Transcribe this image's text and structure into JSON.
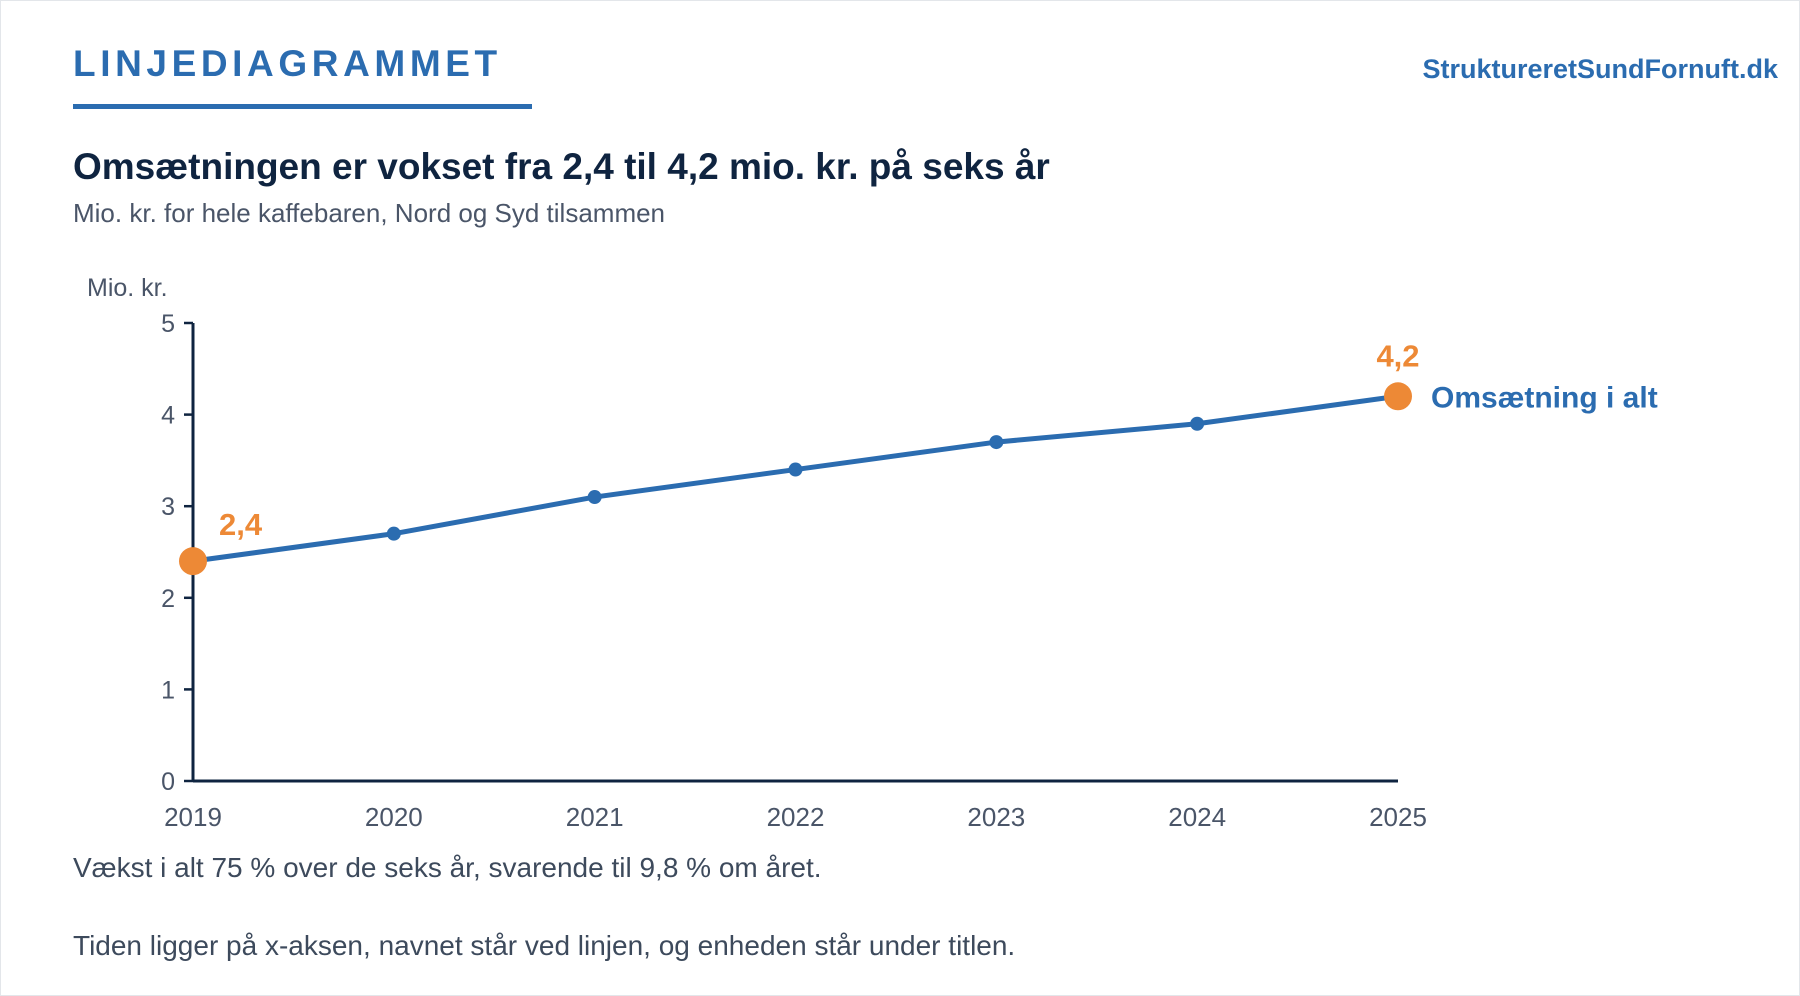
{
  "header": {
    "kicker": "LINJEDIAGRAMMET",
    "brand": "StruktureretSundFornuft.dk"
  },
  "colors": {
    "accent": "#2b6cb0",
    "highlight": "#ed8936",
    "title": "#0f2440",
    "text": "#4a5568",
    "axis": "#0f2440"
  },
  "chart_data": {
    "type": "line",
    "title": "Omsætningen er vokset fra 2,4 til 4,2 mio. kr. på seks år",
    "subtitle": "Mio. kr. for hele kaffebaren, Nord og Syd tilsammen",
    "xlabel": "",
    "ylabel": "Mio. kr.",
    "x": [
      "2019",
      "2020",
      "2021",
      "2022",
      "2023",
      "2024",
      "2025"
    ],
    "ylim": [
      0,
      5
    ],
    "yticks": [
      0,
      1,
      2,
      3,
      4,
      5
    ],
    "grid": false,
    "legend": "none",
    "series": [
      {
        "name": "Omsætning i alt",
        "values": [
          2.4,
          2.7,
          3.1,
          3.4,
          3.7,
          3.9,
          4.2
        ],
        "color": "#2b6cb0"
      }
    ],
    "annotations": [
      {
        "index": 0,
        "text": "2,4"
      },
      {
        "index": 6,
        "text": "4,2"
      }
    ]
  },
  "notes": {
    "growth": "Vækst i alt 75 % over de seks år, svarende til 9,8 % om året.",
    "reading_guide": "Tiden ligger på x-aksen, navnet står ved linjen, og enheden står under titlen."
  }
}
